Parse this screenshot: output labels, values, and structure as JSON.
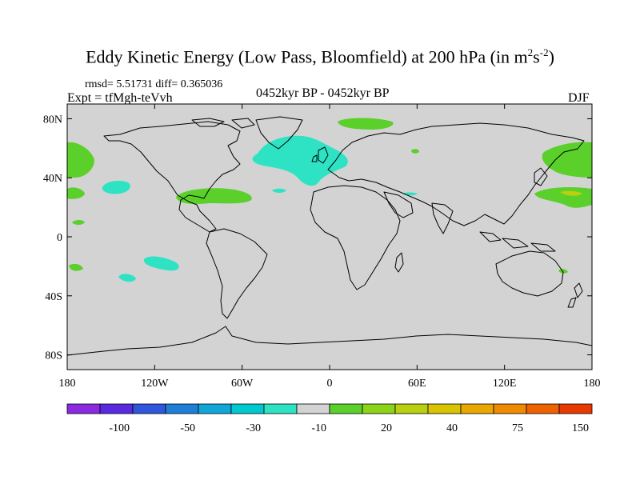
{
  "title": {
    "main": "Eddy Kinetic Energy (Low Pass, Bloomfield) at 200 hPa (in m",
    "sup1": "2",
    "mid": "s",
    "sup2": "-2",
    "end": ")"
  },
  "stats_line": "rmsd= 5.51731 diff= 0.365036",
  "experiment": "Expt = tfMgh-teVvh",
  "period": "0452kyr BP - 0452kyr BP",
  "season": "DJF",
  "map": {
    "projection": "cylindrical-equidistant",
    "lon_range": [
      -180,
      180
    ],
    "lat_range": [
      -90,
      90
    ],
    "land_color": "#d3d3d3",
    "coast_color": "#000000",
    "y_ticks": [
      {
        "lat": 80,
        "label": "80N"
      },
      {
        "lat": 40,
        "label": "40N"
      },
      {
        "lat": 0,
        "label": "0"
      },
      {
        "lat": -40,
        "label": "40S"
      },
      {
        "lat": -80,
        "label": "80S"
      }
    ],
    "x_ticks": [
      {
        "lon": -180,
        "label": "180"
      },
      {
        "lon": -120,
        "label": "120W"
      },
      {
        "lon": -60,
        "label": "60W"
      },
      {
        "lon": 0,
        "label": "0"
      },
      {
        "lon": 60,
        "label": "60E"
      },
      {
        "lon": 120,
        "label": "120E"
      },
      {
        "lon": 180,
        "label": "180"
      }
    ]
  },
  "colorbar": {
    "colors": [
      "#8a2be2",
      "#5a2ae0",
      "#2f57db",
      "#1e7fd8",
      "#10a6d8",
      "#00c8d0",
      "#2ee3c3",
      "#d3d3d3",
      "#5bd02a",
      "#8bd41a",
      "#b8d010",
      "#d8c400",
      "#e8a800",
      "#f08a00",
      "#ee6200",
      "#e83a00"
    ],
    "labels": [
      {
        "boundary": 2,
        "text": "-100"
      },
      {
        "boundary": 4,
        "text": "-50"
      },
      {
        "boundary": 6,
        "text": "-30"
      },
      {
        "boundary": 8,
        "text": "-10"
      },
      {
        "boundary": 10,
        "text": "20"
      },
      {
        "boundary": 12,
        "text": "40"
      },
      {
        "boundary": 14,
        "text": "75"
      },
      {
        "boundary": 16,
        "text": "150"
      }
    ]
  },
  "anomaly_patches": [
    {
      "region": "north-atlantic",
      "sign": "negative",
      "color": "#2ee3c3"
    },
    {
      "region": "mediterranean",
      "sign": "negative",
      "color": "#2ee3c3"
    },
    {
      "region": "north-pacific-east",
      "sign": "negative",
      "color": "#2ee3c3"
    },
    {
      "region": "south-pacific",
      "sign": "negative",
      "color": "#2ee3c3"
    },
    {
      "region": "arctic-north",
      "sign": "positive",
      "color": "#5bd02a"
    },
    {
      "region": "gulf-of-mexico",
      "sign": "positive",
      "color": "#5bd02a"
    },
    {
      "region": "north-pacific-west",
      "sign": "positive",
      "color": "#5bd02a"
    },
    {
      "region": "north-pacific-dateline",
      "sign": "positive",
      "color": "#5bd02a"
    },
    {
      "region": "tropical-pacific",
      "sign": "positive",
      "color": "#5bd02a"
    }
  ]
}
